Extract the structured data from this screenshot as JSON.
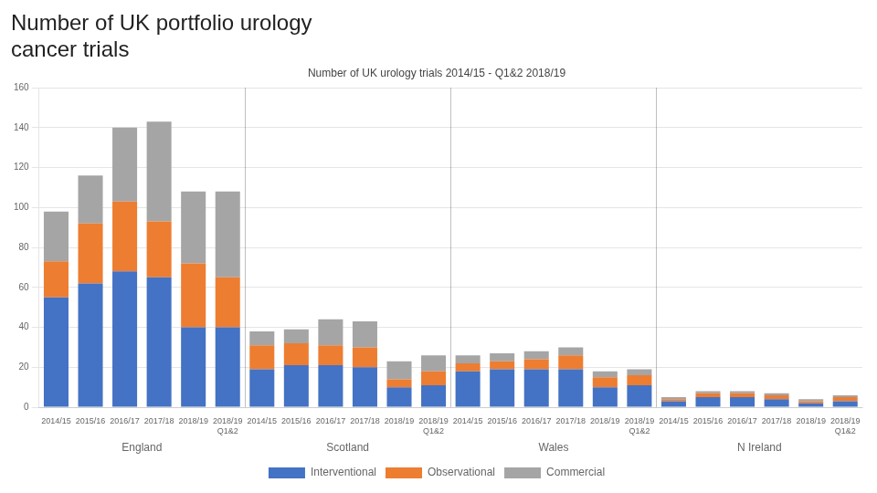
{
  "chart_data": {
    "type": "bar",
    "title": "Number of UK portfolio urology\ncancer trials",
    "subtitle": "Number of UK urology trials 2014/15 - Q1&2 2018/19",
    "categories": [
      "2014/15",
      "2015/16",
      "2016/17",
      "2017/18",
      "2018/19",
      [
        "2018/19",
        "Q1&2"
      ],
      "2014/15",
      "2015/16",
      "2016/17",
      "2017/18",
      "2018/19",
      [
        "2018/19",
        "Q1&2"
      ],
      "2014/15",
      "2015/16",
      "2016/17",
      "2017/18",
      "2018/19",
      [
        "2018/19",
        "Q1&2"
      ],
      "2014/15",
      "2015/16",
      "2016/17",
      "2017/18",
      "2018/19",
      [
        "2018/19",
        "Q1&2"
      ]
    ],
    "groups": [
      "England",
      "Scotland",
      "Wales",
      "N Ireland"
    ],
    "series": [
      {
        "name": "Interventional",
        "color": "#4472C4",
        "values": [
          55,
          62,
          68,
          65,
          40,
          40,
          19,
          21,
          21,
          20,
          10,
          11,
          18,
          19,
          19,
          19,
          10,
          11,
          3,
          5,
          5,
          4,
          2,
          3
        ]
      },
      {
        "name": "Observational",
        "color": "#ED7D31",
        "values": [
          18,
          30,
          35,
          28,
          32,
          25,
          12,
          11,
          10,
          10,
          4,
          7,
          4,
          4,
          5,
          7,
          5,
          5,
          1,
          2,
          2,
          2,
          1,
          2
        ]
      },
      {
        "name": "Commercial",
        "color": "#A5A5A5",
        "values": [
          25,
          24,
          37,
          50,
          36,
          43,
          7,
          7,
          13,
          13,
          9,
          8,
          4,
          4,
          4,
          4,
          3,
          3,
          1,
          1,
          1,
          1,
          1,
          1
        ]
      }
    ],
    "stacked": true,
    "ylim": [
      0,
      160
    ],
    "yticks": [
      0,
      20,
      40,
      60,
      80,
      100,
      120,
      140,
      160
    ],
    "grid": true,
    "legend": "bottom"
  }
}
